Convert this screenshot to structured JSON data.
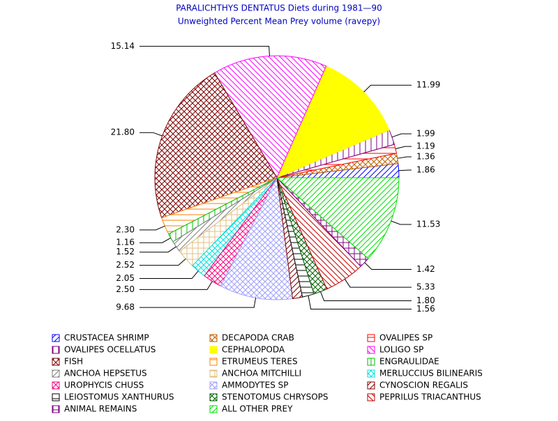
{
  "chart_data": {
    "type": "pie",
    "title": "PARALICHTHYS DENTATUS Diets during 1981—90",
    "subtitle": "Unweighted Percent Mean Prey volume (ravepy)",
    "categories": [
      "CRUSTACEA SHRIMP",
      "DECAPODA CRAB",
      "OVALIPES SP",
      "OVALIPES OCELLATUS",
      "CEPHALOPODA",
      "LOLIGO SP",
      "FISH",
      "ETRUMEUS TERES",
      "ENGRAULIDAE",
      "ANCHOA HEPSETUS",
      "ANCHOA MITCHILLI",
      "MERLUCCIUS BILINEARIS",
      "UROPHYCIS CHUSS",
      "AMMODYTES SP",
      "CYNOSCION REGALIS",
      "LEIOSTOMUS XANTHURUS",
      "STENOTOMUS CHRYSOPS",
      "PEPRILUS TRIACANTHUS",
      "ANIMAL REMAINS",
      "ALL OTHER PREY"
    ],
    "values": [
      1.86,
      1.36,
      1.19,
      1.99,
      11.99,
      15.14,
      21.8,
      2.3,
      1.16,
      1.52,
      2.52,
      2.05,
      2.5,
      9.68,
      1.3,
      1.56,
      1.8,
      5.33,
      1.42,
      11.53
    ],
    "value_labels": [
      "1.86",
      "1.36",
      "1.19",
      "1.99",
      "11.99",
      "15.14",
      "21.80",
      "2.30",
      "1.16",
      "1.52",
      "2.52",
      "2.05",
      "2.50",
      "9.68",
      null,
      "1.56",
      "1.80",
      "5.33",
      "1.42",
      "11.53"
    ],
    "colors": [
      "#0000ff",
      "#c06000",
      "#ff0000",
      "#800080",
      "#ffff00",
      "#ff00ff",
      "#800000",
      "#ff8000",
      "#00c000",
      "#808080",
      "#e0c080",
      "#00e0e0",
      "#ff0080",
      "#a0a0ff",
      "#800000",
      "#000000",
      "#006000",
      "#c00000",
      "#800080",
      "#00e000"
    ],
    "patterns": [
      "fwd",
      "cross",
      "hline",
      "vline",
      "solid",
      "back",
      "cross",
      "hline",
      "vline",
      "fwd",
      "grid",
      "cross",
      "cross",
      "cross",
      "fwd",
      "hline",
      "cross",
      "back",
      "grid",
      "fwd"
    ]
  }
}
